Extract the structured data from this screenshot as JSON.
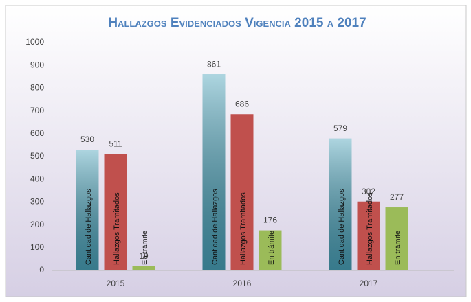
{
  "chart_data": {
    "type": "bar",
    "title": "Hallazgos Evidenciados Vigencia 2015 a 2017",
    "categories": [
      "2015",
      "2016",
      "2017"
    ],
    "series": [
      {
        "name": "Cantidad de Hallazgos",
        "color": "#4aa3bb",
        "values": [
          530,
          861,
          579
        ]
      },
      {
        "name": "Hallazgos Tramitados",
        "color": "#c0504d",
        "values": [
          511,
          686,
          302
        ]
      },
      {
        "name": "En trámite",
        "color": "#9bbb59",
        "values": [
          19,
          176,
          277
        ]
      }
    ],
    "ylim": [
      0,
      1000
    ],
    "yticks": [
      0,
      100,
      200,
      300,
      400,
      500,
      600,
      700,
      800,
      900,
      1000
    ],
    "grid": false
  }
}
